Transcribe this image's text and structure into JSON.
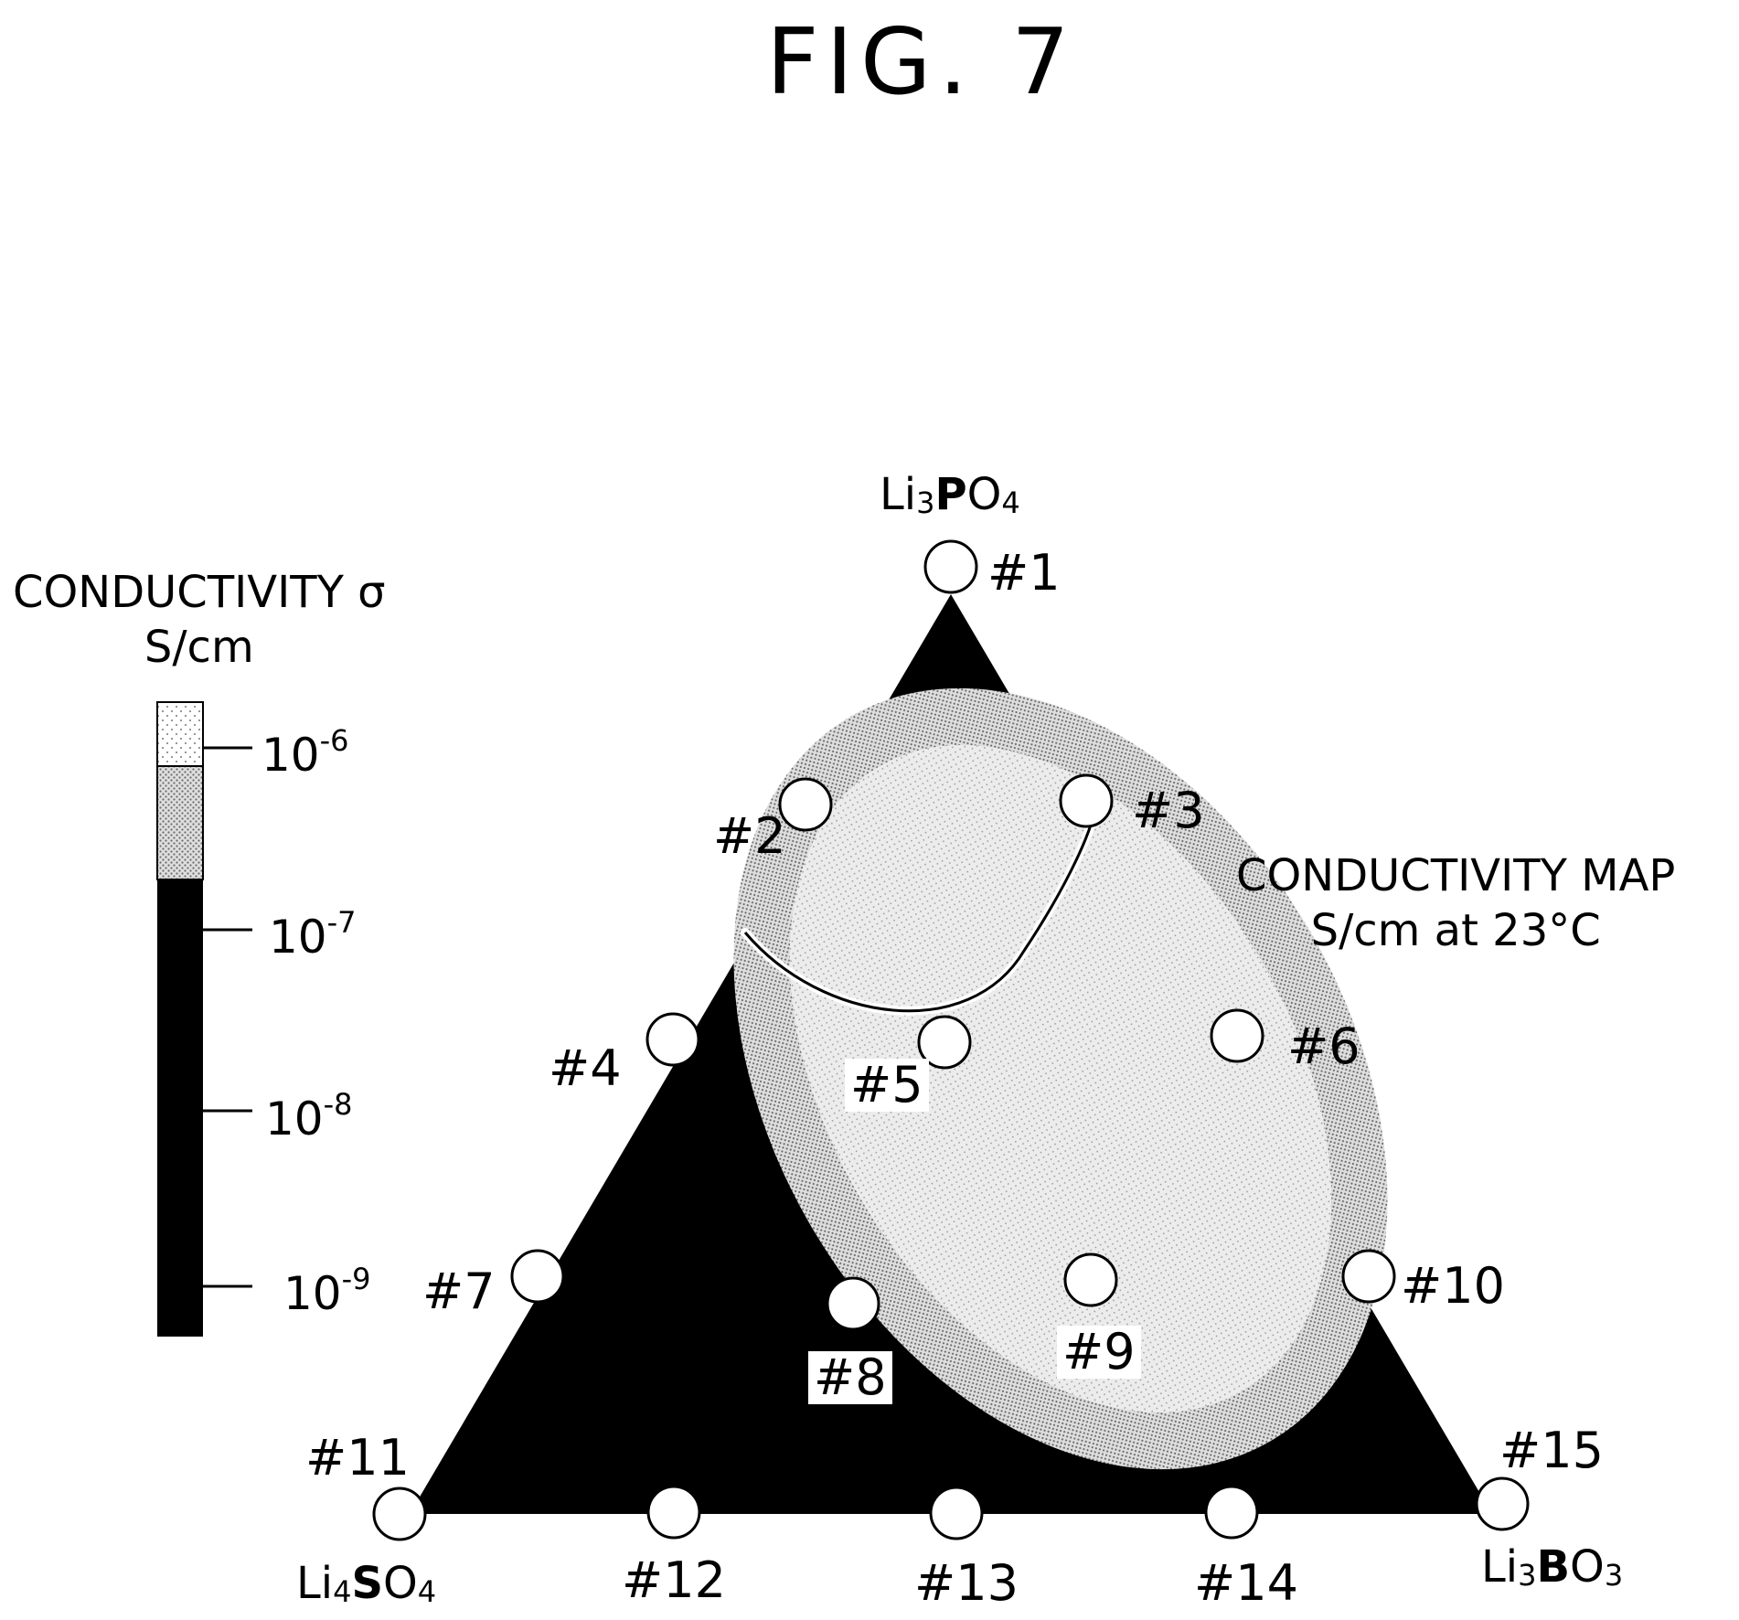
{
  "figure": {
    "title": "FIG. 7"
  },
  "map": {
    "heading_line1": "CONDUCTIVITY MAP",
    "heading_line2": "S/cm at 23°C"
  },
  "legend": {
    "heading_line1": "CONDUCTIVITY σ",
    "heading_line2": "S/cm",
    "ticks": [
      {
        "mantissa": "10",
        "exponent": "-6"
      },
      {
        "mantissa": "10",
        "exponent": "-7"
      },
      {
        "mantissa": "10",
        "exponent": "-8"
      },
      {
        "mantissa": "10",
        "exponent": "-9"
      }
    ]
  },
  "vertices": {
    "top": {
      "prefix": "Li",
      "sub1": "3",
      "element": "P",
      "oxygen": "O",
      "sub2": "4"
    },
    "left": {
      "prefix": "Li",
      "sub1": "4",
      "element": "S",
      "oxygen": "O",
      "sub2": "4"
    },
    "right": {
      "prefix": "Li",
      "sub1": "3",
      "element": "B",
      "oxygen": "O",
      "sub2": "3"
    }
  },
  "points": [
    "#1",
    "#2",
    "#3",
    "#4",
    "#5",
    "#6",
    "#7",
    "#8",
    "#9",
    "#10",
    "#11",
    "#12",
    "#13",
    "#14",
    "#15"
  ],
  "colors": {
    "low_region": "#000000",
    "high_region": "#d8d8d8",
    "markers": "#ffffff"
  }
}
